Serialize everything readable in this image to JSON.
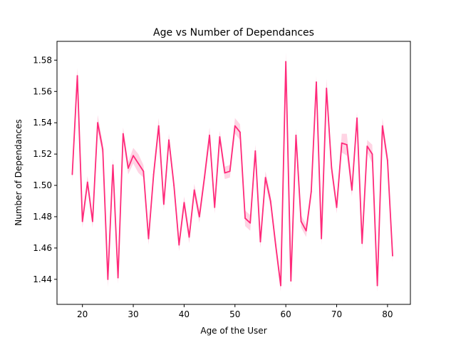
{
  "chart_data": {
    "type": "line",
    "title": "Age vs Number of Dependances",
    "xlabel": "Age of the User",
    "ylabel": "Number of Dependances",
    "xlim": [
      15,
      84.5
    ],
    "ylim": [
      1.424,
      1.592
    ],
    "xticks": [
      20,
      30,
      40,
      50,
      60,
      70,
      80
    ],
    "yticks": [
      1.44,
      1.46,
      1.48,
      1.5,
      1.52,
      1.54,
      1.56,
      1.58
    ],
    "ytick_labels": [
      "1.44",
      "1.46",
      "1.48",
      "1.50",
      "1.52",
      "1.54",
      "1.56",
      "1.58"
    ],
    "line_color": "#ff2a7a",
    "band_color": "#ff2a7a",
    "grid": false,
    "series": [
      {
        "x": [
          18,
          19,
          20,
          21,
          22,
          23,
          24,
          25,
          26,
          27,
          28,
          29,
          30,
          31,
          32,
          33,
          34,
          35,
          36,
          37,
          38,
          39,
          40,
          41,
          42,
          43,
          44,
          45,
          46,
          47,
          48,
          49,
          50,
          51,
          52,
          53,
          54,
          55,
          56,
          57,
          58,
          59,
          60,
          61,
          62,
          63,
          64,
          65,
          66,
          67,
          68,
          69,
          70,
          71,
          72,
          73,
          74,
          75,
          76,
          77,
          78,
          79,
          80,
          81
        ],
        "y": [
          1.507,
          1.57,
          1.477,
          1.502,
          1.477,
          1.54,
          1.523,
          1.44,
          1.513,
          1.441,
          1.533,
          1.511,
          1.519,
          1.514,
          1.509,
          1.466,
          1.507,
          1.538,
          1.488,
          1.529,
          1.5,
          1.462,
          1.489,
          1.467,
          1.497,
          1.48,
          1.505,
          1.532,
          1.486,
          1.531,
          1.508,
          1.509,
          1.538,
          1.534,
          1.479,
          1.476,
          1.522,
          1.464,
          1.505,
          1.49,
          1.462,
          1.436,
          1.579,
          1.439,
          1.532,
          1.477,
          1.471,
          1.496,
          1.566,
          1.466,
          1.562,
          1.511,
          1.486,
          1.527,
          1.526,
          1.497,
          1.543,
          1.463,
          1.525,
          1.52,
          1.436,
          1.538,
          1.516,
          1.455
        ],
        "band": [
          0.004,
          0.005,
          0.004,
          0.004,
          0.004,
          0.005,
          0.004,
          0.005,
          0.004,
          0.004,
          0.004,
          0.004,
          0.005,
          0.006,
          0.004,
          0.004,
          0.004,
          0.005,
          0.004,
          0.004,
          0.004,
          0.004,
          0.004,
          0.004,
          0.004,
          0.004,
          0.004,
          0.005,
          0.004,
          0.004,
          0.004,
          0.004,
          0.005,
          0.005,
          0.005,
          0.005,
          0.004,
          0.004,
          0.004,
          0.004,
          0.004,
          0.004,
          0.006,
          0.004,
          0.004,
          0.004,
          0.004,
          0.004,
          0.004,
          0.004,
          0.006,
          0.004,
          0.004,
          0.006,
          0.007,
          0.004,
          0.004,
          0.004,
          0.004,
          0.006,
          0.004,
          0.005,
          0.004,
          0.004
        ]
      }
    ]
  }
}
